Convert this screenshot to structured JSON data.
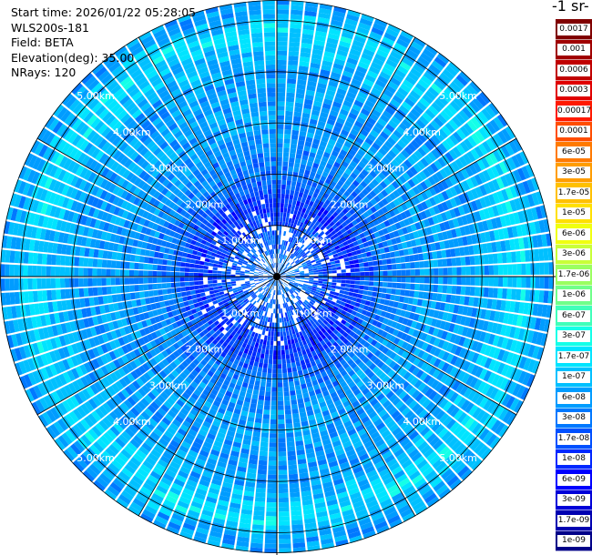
{
  "header": {
    "start_time": "Start time: 2026/01/22 05:28:05",
    "device": "WLS200s-181",
    "field": "Field: BETA",
    "elevation": "Elevation(deg): 35.00",
    "nrays": "NRays: 120"
  },
  "colorbar": {
    "title": "-1 sr-",
    "labels": [
      "0.0017",
      "0.001",
      "0.0006",
      "0.0003",
      "0.00017",
      "0.0001",
      "6e-05",
      "3e-05",
      "1.7e-05",
      "1e-05",
      "6e-06",
      "3e-06",
      "1.7e-06",
      "1e-06",
      "6e-07",
      "3e-07",
      "1.7e-07",
      "1e-07",
      "6e-08",
      "3e-08",
      "1.7e-08",
      "1e-08",
      "6e-09",
      "3e-09",
      "1.7e-09",
      "1e-09"
    ],
    "colors": [
      "#800000",
      "#a00000",
      "#c00000",
      "#e00000",
      "#ff1a00",
      "#ff4d00",
      "#ff7a00",
      "#ff9d00",
      "#ffc000",
      "#ffe000",
      "#f0ff10",
      "#c8ff38",
      "#9aff60",
      "#70ff8a",
      "#40ffba",
      "#14ffe8",
      "#00e4ff",
      "#00c0ff",
      "#009cff",
      "#0078ff",
      "#0050ff",
      "#0028ff",
      "#0000ff",
      "#0000d8",
      "#0000b0",
      "#000088"
    ]
  },
  "chart_data": {
    "type": "heatmap",
    "projection": "polar (PPI scan)",
    "field": "BETA",
    "elevation_deg": 35.0,
    "n_rays": 120,
    "range_unit": "km",
    "max_range_km": 5.4,
    "range_rings_km": [
      1,
      2,
      3,
      4,
      5
    ],
    "ring_labels": [
      "1.00km",
      "2.00km",
      "3.00km",
      "4.00km",
      "5.00km"
    ],
    "spoke_step_deg": 30,
    "color_scale": "log",
    "value_range": [
      1e-09,
      0.0017
    ],
    "radial_profile": [
      {
        "range_km": 0.3,
        "value": 3e-08
      },
      {
        "range_km": 1.0,
        "value": 1.7e-08
      },
      {
        "range_km": 1.5,
        "value": 1e-08
      },
      {
        "range_km": 2.0,
        "value": 3e-08
      },
      {
        "range_km": 3.0,
        "value": 6e-08
      },
      {
        "range_km": 4.0,
        "value": 6e-08
      },
      {
        "range_km": 4.8,
        "value": 1.7e-07
      },
      {
        "range_km": 5.2,
        "value": 6e-08
      }
    ]
  }
}
